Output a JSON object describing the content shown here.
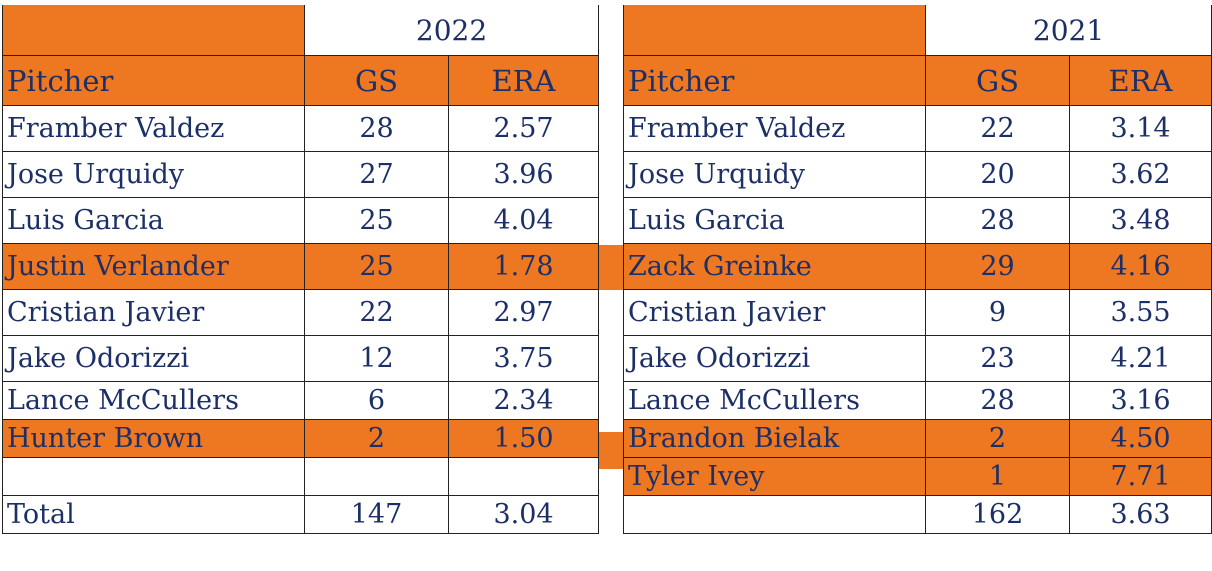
{
  "tables": [
    {
      "year": "2022",
      "headers": {
        "pitcher": "Pitcher",
        "gs": "GS",
        "era": "ERA"
      },
      "rows": [
        {
          "pitcher": "Framber Valdez",
          "gs": "28",
          "era": "2.57",
          "highlight": false
        },
        {
          "pitcher": "Jose Urquidy",
          "gs": "27",
          "era": "3.96",
          "highlight": false
        },
        {
          "pitcher": "Luis Garcia",
          "gs": "25",
          "era": "4.04",
          "highlight": false
        },
        {
          "pitcher": "Justin Verlander",
          "gs": "25",
          "era": "1.78",
          "highlight": true
        },
        {
          "pitcher": "Cristian Javier",
          "gs": "22",
          "era": "2.97",
          "highlight": false
        },
        {
          "pitcher": "Jake Odorizzi",
          "gs": "12",
          "era": "3.75",
          "highlight": false
        },
        {
          "pitcher": "Lance McCullers",
          "gs": "6",
          "era": "2.34",
          "highlight": false
        },
        {
          "pitcher": "Hunter Brown",
          "gs": "2",
          "era": "1.50",
          "highlight": true
        },
        {
          "pitcher": "",
          "gs": "",
          "era": "",
          "highlight": false
        }
      ],
      "total": {
        "label": "Total",
        "gs": "147",
        "era": "3.04"
      }
    },
    {
      "year": "2021",
      "headers": {
        "pitcher": "Pitcher",
        "gs": "GS",
        "era": "ERA"
      },
      "rows": [
        {
          "pitcher": "Framber Valdez",
          "gs": "22",
          "era": "3.14",
          "highlight": false
        },
        {
          "pitcher": "Jose Urquidy",
          "gs": "20",
          "era": "3.62",
          "highlight": false
        },
        {
          "pitcher": "Luis Garcia",
          "gs": "28",
          "era": "3.48",
          "highlight": false
        },
        {
          "pitcher": "Zack Greinke",
          "gs": "29",
          "era": "4.16",
          "highlight": true
        },
        {
          "pitcher": "Cristian Javier",
          "gs": "9",
          "era": "3.55",
          "highlight": false
        },
        {
          "pitcher": "Jake Odorizzi",
          "gs": "23",
          "era": "4.21",
          "highlight": false
        },
        {
          "pitcher": "Lance McCullers",
          "gs": "28",
          "era": "3.16",
          "highlight": false
        },
        {
          "pitcher": "Brandon Bielak",
          "gs": "2",
          "era": "4.50",
          "highlight": true
        },
        {
          "pitcher": "Tyler Ivey",
          "gs": "1",
          "era": "7.71",
          "highlight": true
        }
      ],
      "total": {
        "label": "",
        "gs": "162",
        "era": "3.63"
      }
    }
  ],
  "colors": {
    "accent": "#ee7722",
    "text": "#1c2f66",
    "border": "#222222"
  }
}
